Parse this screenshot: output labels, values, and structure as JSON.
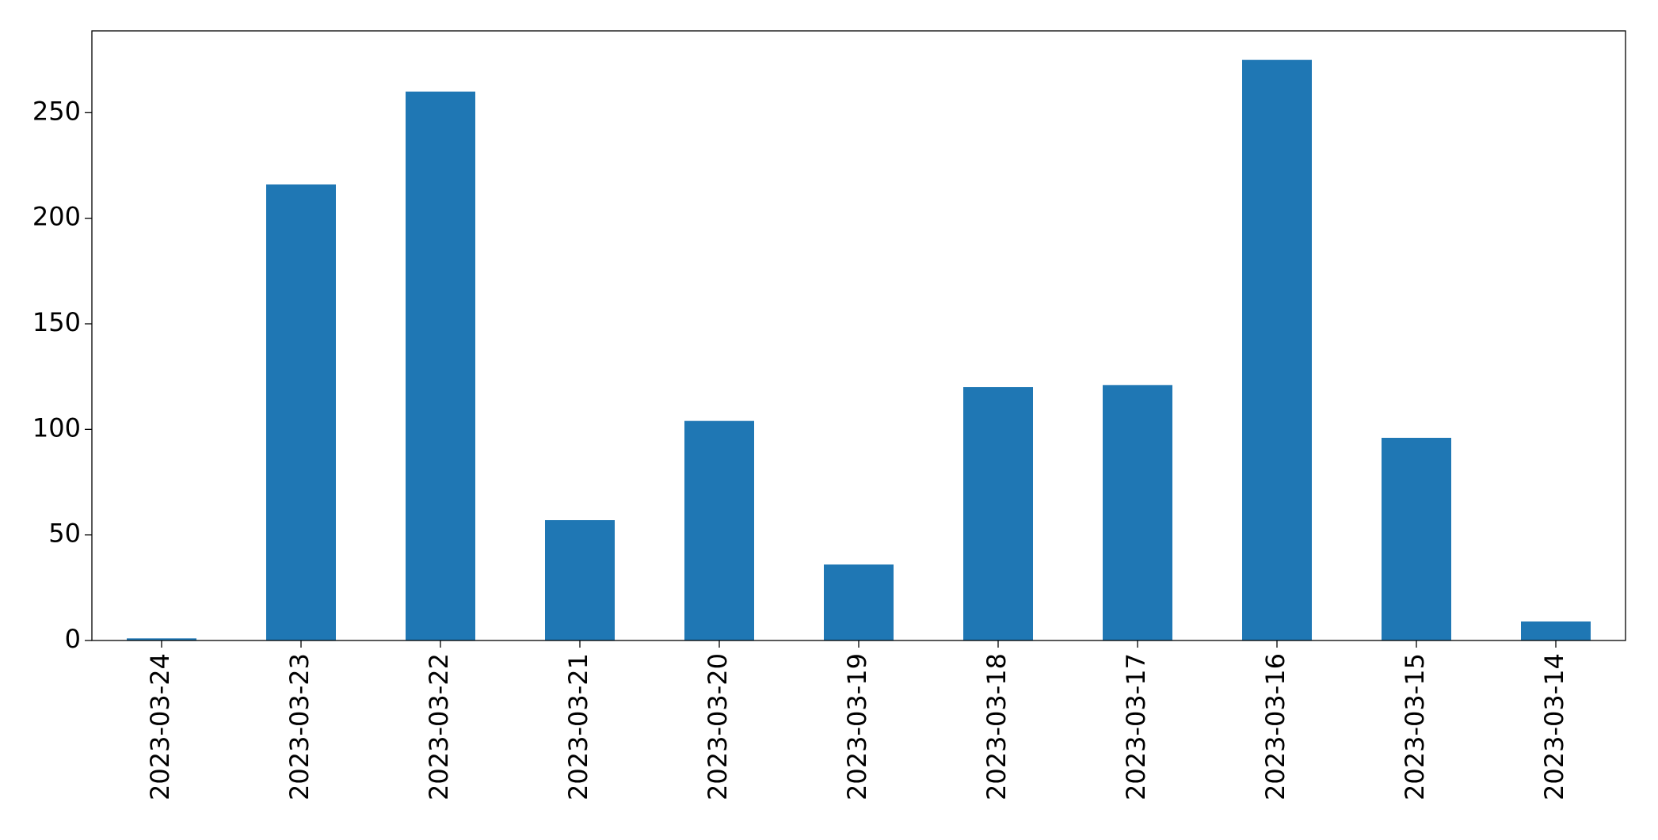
{
  "chart_data": {
    "type": "bar",
    "categories": [
      "2023-03-24",
      "2023-03-23",
      "2023-03-22",
      "2023-03-21",
      "2023-03-20",
      "2023-03-19",
      "2023-03-18",
      "2023-03-17",
      "2023-03-16",
      "2023-03-15",
      "2023-03-14"
    ],
    "values": [
      1,
      216,
      260,
      57,
      104,
      36,
      120,
      121,
      275,
      96,
      9
    ],
    "color": "#1f77b4",
    "ylim": [
      0,
      288.75
    ],
    "yticks": [
      0,
      50,
      100,
      150,
      200,
      250
    ],
    "grid": false
  }
}
